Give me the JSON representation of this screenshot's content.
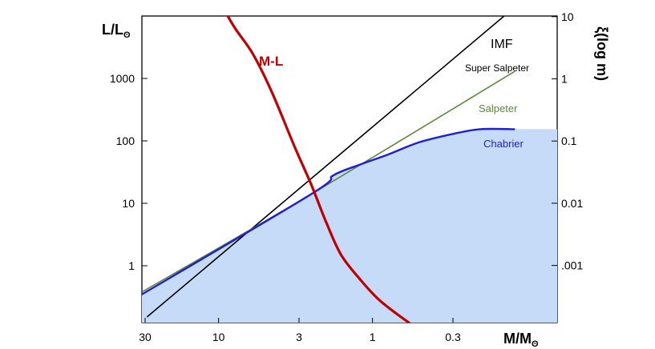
{
  "chart_data": {
    "type": "line",
    "x_axis": {
      "label_main": "M/M",
      "label_sub": "ʘ",
      "scale": "log",
      "direction": "decreasing-left-to-right",
      "ticks": [
        {
          "value": 30,
          "label": "30"
        },
        {
          "value": 10,
          "label": "10"
        },
        {
          "value": 3,
          "label": "3"
        },
        {
          "value": 1,
          "label": "1"
        },
        {
          "value": 0.3,
          "label": "0.3"
        }
      ]
    },
    "y_left": {
      "label_main": "L/L",
      "label_sub": "ʘ",
      "scale": "log",
      "ticks": [
        {
          "value": 1,
          "label": "1"
        },
        {
          "value": 10,
          "label": "10"
        },
        {
          "value": 100,
          "label": "100"
        },
        {
          "value": 1000,
          "label": "1000"
        }
      ]
    },
    "y_right": {
      "label": "ξ(log m)",
      "scale": "log",
      "ticks": [
        {
          "value": 10,
          "label": "10"
        },
        {
          "value": 1,
          "label": "1"
        },
        {
          "value": 0.1,
          "label": "0.1"
        },
        {
          "value": 0.01,
          "label": "0.01"
        },
        {
          "value": 0.001,
          "label": ".001"
        }
      ]
    },
    "annotation": "IMF",
    "series": [
      {
        "name": "M-L",
        "axis": "left",
        "color": "#c00000",
        "points": [
          [
            11.2,
            30000
          ],
          [
            8,
            7000
          ],
          [
            6,
            2500
          ],
          [
            4.5,
            600
          ],
          [
            3.2,
            80
          ],
          [
            2.5,
            20
          ],
          [
            2,
            5
          ],
          [
            1.6,
            1.5
          ],
          [
            1.2,
            0.6
          ],
          [
            0.9,
            0.28
          ],
          [
            0.6,
            0.13
          ],
          [
            0.4,
            0.065
          ],
          [
            0.3,
            0.052
          ],
          [
            0.25,
            0.05
          ],
          [
            0.12,
            0.05
          ]
        ]
      },
      {
        "name": "Super Salpeter",
        "axis": "right",
        "color": "#000000",
        "points": [
          [
            29,
            0.00015
          ],
          [
            0.12,
            14
          ]
        ]
      },
      {
        "name": "Salpeter",
        "axis": "right",
        "color": "#5a8a3a",
        "points": [
          [
            33,
            0.00035
          ],
          [
            2.5,
            0.014
          ],
          [
            0.12,
            1.3
          ]
        ]
      },
      {
        "name": "Chabrier",
        "axis": "right",
        "color": "#1f1fd2",
        "fill": "#c5dbf7",
        "points": [
          [
            33,
            0.00032
          ],
          [
            2.5,
            0.014
          ],
          [
            1.8,
            0.028
          ],
          [
            1.2,
            0.042
          ],
          [
            0.8,
            0.06
          ],
          [
            0.5,
            0.095
          ],
          [
            0.3,
            0.13
          ],
          [
            0.2,
            0.155
          ],
          [
            0.12,
            0.155
          ]
        ]
      }
    ]
  }
}
